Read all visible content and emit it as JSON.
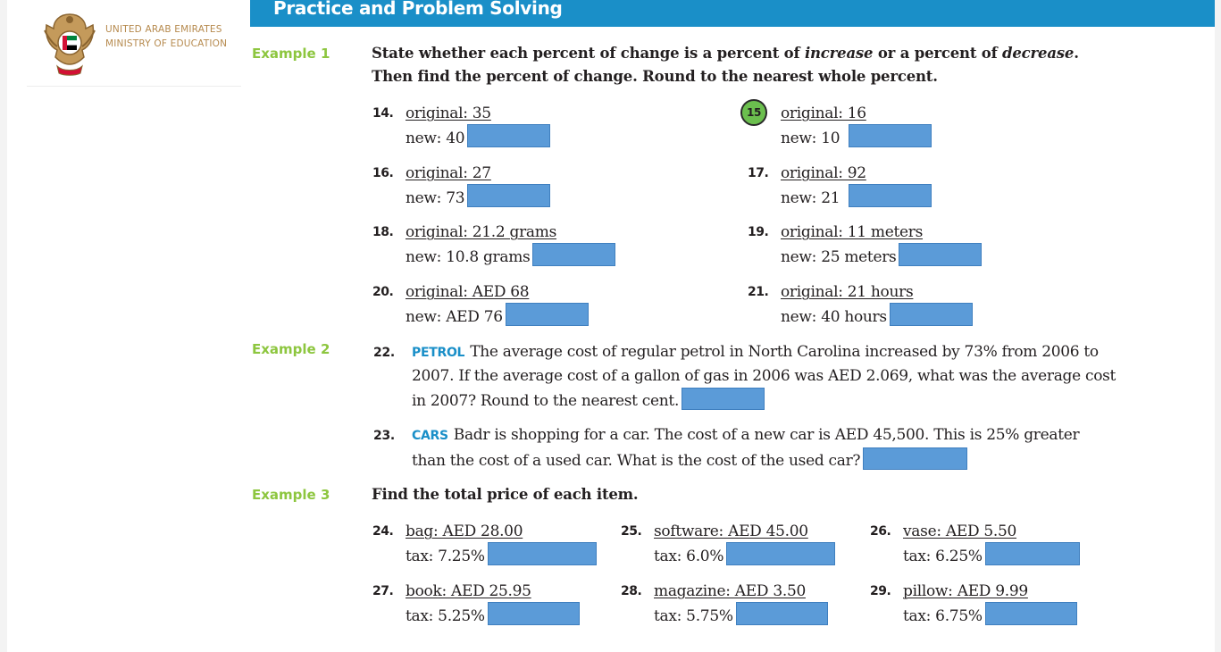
{
  "ministry": {
    "line1": "UNITED ARAB EMIRATES",
    "line2": "MINISTRY OF EDUCATION"
  },
  "section": {
    "title": "Practice and Problem Solving"
  },
  "examples": {
    "ex1": "Example 1",
    "ex2": "Example 2",
    "ex3": "Example 3"
  },
  "instructions": {
    "ex1_part1": "State whether each percent of change is a percent of ",
    "ex1_italic1": "increase",
    "ex1_part2": " or a percent of ",
    "ex1_italic2": "decrease",
    "ex1_part3": ".",
    "ex1_line2": "Then find the percent of change. Round to the nearest whole percent.",
    "ex3": "Find the total price of each item."
  },
  "problems": {
    "p14": {
      "num": "14.",
      "line1": "original: 35",
      "line2": "new: 40"
    },
    "p15": {
      "num": "15",
      "line1": "original: 16",
      "line2": "new: 10"
    },
    "p16": {
      "num": "16.",
      "line1": "original: 27",
      "line2": "new: 73"
    },
    "p17": {
      "num": "17.",
      "line1": "original: 92",
      "line2": "new: 21"
    },
    "p18": {
      "num": "18.",
      "line1": "original: 21.2 grams",
      "line2": "new: 10.8 grams"
    },
    "p19": {
      "num": "19.",
      "line1": "original: 11 meters",
      "line2": "new: 25 meters"
    },
    "p20": {
      "num": "20.",
      "line1": "original: AED 68",
      "line2": "new: AED 76"
    },
    "p21": {
      "num": "21.",
      "line1": "original: 21 hours",
      "line2": "new: 40 hours"
    },
    "p22": {
      "num": "22.",
      "keyword": "PETROL",
      "text": "The average cost of regular petrol in North Carolina increased by 73% from 2006 to 2007. If the average cost of a gallon of gas in 2006 was AED 2.069, what was the average cost in 2007? Round to the nearest cent."
    },
    "p23": {
      "num": "23.",
      "keyword": "CARS",
      "text": "Badr is shopping for a car. The cost of a new car is AED 45,500. This is 25% greater than the cost of a used car. What is the cost of the used car?"
    },
    "p24": {
      "num": "24.",
      "line1": "bag: AED 28.00",
      "line2": "tax: 7.25%"
    },
    "p25": {
      "num": "25.",
      "line1": "software: AED 45.00",
      "line2": "tax: 6.0%"
    },
    "p26": {
      "num": "26.",
      "line1": "vase: AED 5.50",
      "line2": "tax: 6.25%"
    },
    "p27": {
      "num": "27.",
      "line1": "book: AED 25.95",
      "line2": "tax: 5.25%"
    },
    "p28": {
      "num": "28.",
      "line1": "magazine: AED 3.50",
      "line2": "tax: 5.75%"
    },
    "p29": {
      "num": "29.",
      "line1": "pillow: AED 9.99",
      "line2": "tax: 6.75%"
    }
  },
  "colors": {
    "banner": "#1a8fc8",
    "example_label": "#8dc63f",
    "answer_box": "#5b9bd8",
    "circle": "#6bbf4e",
    "keyword": "#1a8fc8",
    "ministry_text": "#b68a4e"
  }
}
